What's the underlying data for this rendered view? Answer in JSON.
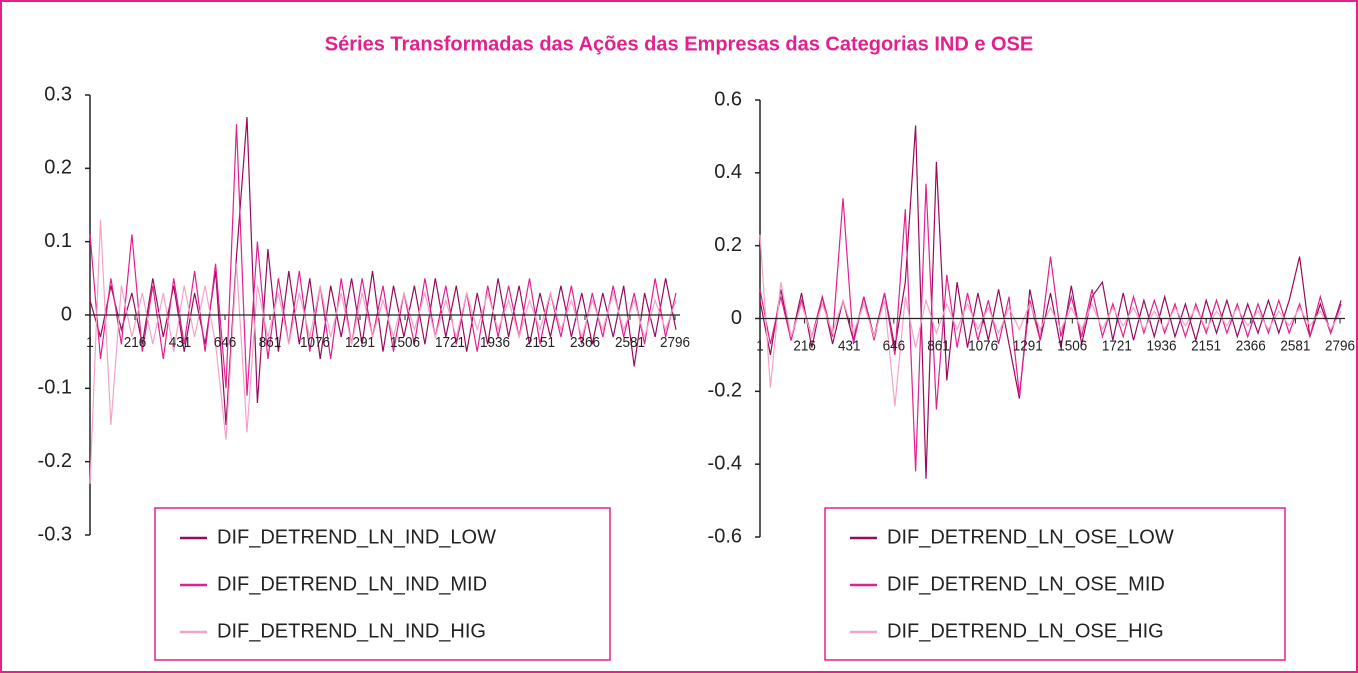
{
  "title": "Séries Transformadas das Ações das Empresas das Categorias IND e OSE",
  "chart_data": [
    {
      "type": "line",
      "legend": "lower center",
      "x": [
        1,
        51,
        101,
        151,
        201,
        251,
        301,
        351,
        401,
        451,
        501,
        551,
        601,
        651,
        701,
        751,
        801,
        851,
        901,
        951,
        1001,
        1051,
        1101,
        1151,
        1201,
        1251,
        1301,
        1351,
        1401,
        1451,
        1501,
        1551,
        1601,
        1651,
        1701,
        1751,
        1801,
        1851,
        1901,
        1951,
        2001,
        2051,
        2101,
        2151,
        2201,
        2251,
        2301,
        2351,
        2401,
        2451,
        2501,
        2551,
        2601,
        2651,
        2701,
        2751,
        2801
      ],
      "xlim": [
        1,
        2820
      ],
      "xticks": [
        1,
        216,
        431,
        646,
        861,
        1076,
        1291,
        1506,
        1721,
        1936,
        2151,
        2366,
        2581,
        2796
      ],
      "ylim": [
        -0.3,
        0.3
      ],
      "yticks": [
        -0.3,
        -0.2,
        -0.1,
        0,
        0.1,
        0.2,
        0.3
      ],
      "series": [
        {
          "name": "DIF_DETREND_LN_IND_LOW",
          "color": "#990a5c",
          "values": [
            0.02,
            -0.03,
            0.04,
            -0.02,
            0.03,
            -0.04,
            0.05,
            -0.03,
            0.04,
            -0.05,
            0.03,
            -0.04,
            0.06,
            -0.15,
            0.08,
            0.27,
            -0.12,
            0.09,
            -0.05,
            0.06,
            -0.04,
            0.05,
            -0.06,
            0.04,
            -0.03,
            0.05,
            -0.04,
            0.06,
            -0.05,
            0.04,
            -0.03,
            0.04,
            -0.04,
            0.05,
            -0.03,
            0.04,
            -0.05,
            0.03,
            -0.04,
            0.05,
            -0.03,
            0.04,
            -0.04,
            0.03,
            -0.03,
            0.04,
            -0.03,
            0.03,
            -0.04,
            0.03,
            -0.03,
            0.04,
            -0.07,
            0.03,
            -0.03,
            0.05,
            -0.02
          ]
        },
        {
          "name": "DIF_DETREND_LN_IND_MID",
          "color": "#e2208e",
          "values": [
            0.11,
            -0.06,
            0.05,
            -0.04,
            0.11,
            -0.05,
            0.04,
            -0.06,
            0.05,
            -0.04,
            0.06,
            -0.05,
            0.07,
            -0.1,
            0.26,
            -0.11,
            0.1,
            -0.06,
            0.05,
            -0.04,
            0.06,
            -0.05,
            0.04,
            -0.06,
            0.05,
            -0.04,
            0.05,
            -0.03,
            0.04,
            -0.05,
            0.03,
            -0.04,
            0.05,
            -0.03,
            0.04,
            -0.04,
            0.03,
            -0.05,
            0.04,
            -0.03,
            0.04,
            -0.03,
            0.05,
            -0.04,
            0.03,
            -0.03,
            0.04,
            -0.04,
            0.03,
            -0.03,
            0.04,
            -0.03,
            0.03,
            -0.04,
            0.05,
            -0.03,
            0.03
          ]
        },
        {
          "name": "DIF_DETREND_LN_IND_HIG",
          "color": "#f4a3c8",
          "values": [
            -0.23,
            0.13,
            -0.15,
            0.04,
            -0.03,
            0.03,
            -0.04,
            0.03,
            -0.05,
            0.04,
            -0.03,
            0.04,
            -0.04,
            -0.17,
            0.07,
            -0.16,
            0.04,
            -0.03,
            0.03,
            -0.04,
            0.03,
            -0.03,
            0.04,
            -0.03,
            0.03,
            -0.04,
            0.03,
            -0.03,
            0.02,
            -0.03,
            0.03,
            -0.02,
            0.03,
            -0.03,
            0.02,
            -0.03,
            0.03,
            -0.02,
            0.03,
            -0.02,
            0.02,
            -0.03,
            0.02,
            -0.02,
            0.03,
            -0.02,
            0.02,
            -0.03,
            0.02,
            -0.02,
            0.03,
            -0.02,
            0.02,
            -0.03,
            0.02,
            -0.02,
            0.02
          ]
        }
      ]
    },
    {
      "type": "line",
      "legend": "lower center",
      "x": [
        1,
        51,
        101,
        151,
        201,
        251,
        301,
        351,
        401,
        451,
        501,
        551,
        601,
        651,
        701,
        751,
        801,
        851,
        901,
        951,
        1001,
        1051,
        1101,
        1151,
        1201,
        1251,
        1301,
        1351,
        1401,
        1451,
        1501,
        1551,
        1601,
        1651,
        1701,
        1751,
        1801,
        1851,
        1901,
        1951,
        2001,
        2051,
        2101,
        2151,
        2201,
        2251,
        2301,
        2351,
        2401,
        2451,
        2501,
        2551,
        2601,
        2651,
        2701,
        2751,
        2801
      ],
      "xlim": [
        1,
        2820
      ],
      "xticks": [
        1,
        216,
        431,
        646,
        861,
        1076,
        1291,
        1506,
        1721,
        1936,
        2151,
        2366,
        2581,
        2796
      ],
      "ylim": [
        -0.6,
        0.6
      ],
      "yticks": [
        -0.6,
        -0.4,
        -0.2,
        0,
        0.2,
        0.4,
        0.6
      ],
      "series": [
        {
          "name": "DIF_DETREND_LN_OSE_LOW",
          "color": "#990a5c",
          "values": [
            0.05,
            -0.1,
            0.08,
            -0.06,
            0.07,
            -0.08,
            0.06,
            -0.07,
            0.05,
            -0.06,
            0.06,
            -0.05,
            0.07,
            -0.08,
            0.1,
            0.53,
            -0.44,
            0.43,
            -0.17,
            0.1,
            -0.08,
            0.07,
            -0.06,
            0.08,
            -0.07,
            -0.22,
            0.08,
            -0.06,
            0.07,
            -0.08,
            0.09,
            -0.07,
            0.06,
            0.1,
            -0.06,
            0.07,
            -0.06,
            0.05,
            -0.05,
            0.06,
            -0.05,
            0.04,
            -0.06,
            0.05,
            -0.04,
            0.05,
            -0.05,
            0.04,
            -0.04,
            0.05,
            -0.04,
            0.05,
            0.17,
            -0.05,
            0.04,
            -0.04,
            0.05
          ]
        },
        {
          "name": "DIF_DETREND_LN_OSE_MID",
          "color": "#e2208e",
          "values": [
            0.08,
            -0.07,
            0.06,
            -0.06,
            0.05,
            -0.05,
            0.06,
            -0.05,
            0.33,
            -0.07,
            0.06,
            -0.06,
            0.07,
            -0.1,
            0.3,
            -0.42,
            0.37,
            -0.25,
            0.12,
            -0.08,
            0.07,
            -0.06,
            0.05,
            -0.07,
            0.06,
            -0.21,
            0.05,
            -0.06,
            0.17,
            -0.05,
            0.06,
            -0.05,
            0.08,
            -0.05,
            0.04,
            -0.05,
            0.06,
            -0.04,
            0.05,
            -0.04,
            0.04,
            -0.05,
            0.04,
            -0.04,
            0.05,
            -0.04,
            0.04,
            -0.05,
            0.04,
            -0.04,
            0.05,
            -0.04,
            0.04,
            -0.05,
            0.06,
            -0.04,
            0.04
          ]
        },
        {
          "name": "DIF_DETREND_LN_OSE_HIG",
          "color": "#f4a3c8",
          "values": [
            0.23,
            -0.19,
            0.1,
            -0.05,
            0.04,
            -0.05,
            0.04,
            -0.04,
            0.05,
            -0.04,
            0.04,
            -0.05,
            0.05,
            -0.24,
            0.06,
            -0.08,
            0.05,
            -0.04,
            0.04,
            -0.03,
            0.04,
            -0.03,
            0.03,
            -0.04,
            0.03,
            -0.03,
            0.04,
            -0.03,
            0.03,
            -0.03,
            0.03,
            -0.03,
            0.04,
            -0.03,
            0.03,
            -0.02,
            0.03,
            -0.03,
            0.02,
            -0.03,
            0.03,
            -0.02,
            0.03,
            -0.03,
            0.02,
            -0.02,
            0.03,
            -0.02,
            0.02,
            -0.03,
            0.02,
            -0.02,
            0.03,
            -0.02,
            0.02,
            -0.03,
            0.02
          ]
        }
      ]
    }
  ]
}
